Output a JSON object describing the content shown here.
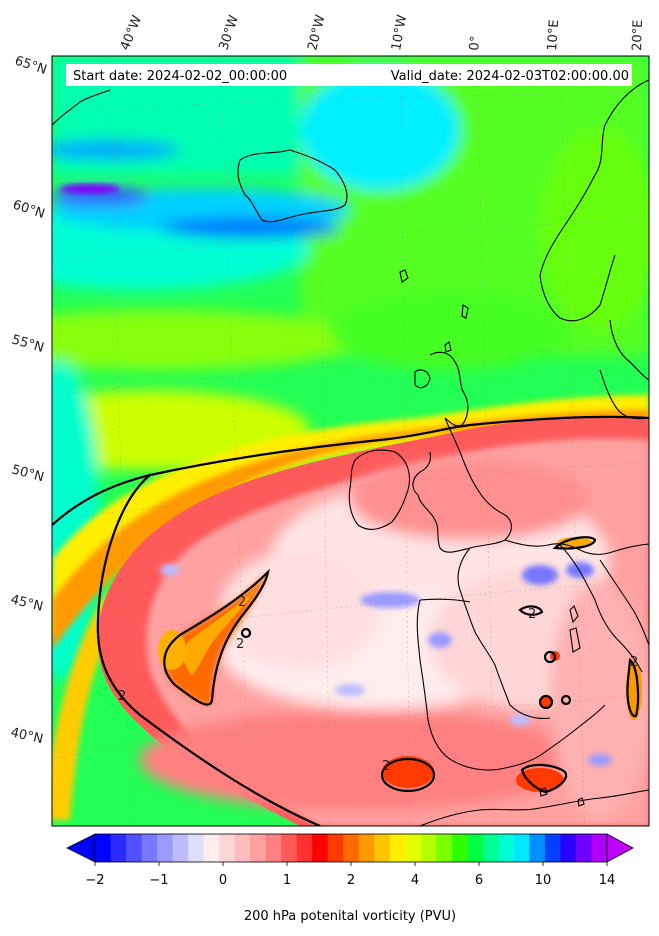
{
  "header": {
    "start_date": "Start date: 2024-02-02_00:00:00",
    "valid_date": "Valid_date: 2024-02-03T02:00:00.00"
  },
  "longitude_labels": [
    "40°W",
    "30°W",
    "20°W",
    "10°W",
    "0°",
    "10°E",
    "20°E"
  ],
  "latitude_labels": [
    "65°N",
    "60°N",
    "55°N",
    "50°N",
    "45°N",
    "40°N"
  ],
  "contour_label": "2",
  "colorbar": {
    "title": "200 hPa potenital vorticity (PVU)",
    "tick_labels": [
      "−2",
      "−1",
      "0",
      "1",
      "2",
      "4",
      "6",
      "10",
      "14"
    ],
    "colors": [
      "#0000ff",
      "#2a2aff",
      "#5050ff",
      "#7777ff",
      "#9a9aff",
      "#bcbcff",
      "#dedeff",
      "#ffecec",
      "#ffd6d6",
      "#ffbcbc",
      "#ffa0a0",
      "#ff8080",
      "#ff5a5a",
      "#ff3030",
      "#ff0000",
      "#ff3a00",
      "#ff6a00",
      "#ff9a00",
      "#ffc400",
      "#ffee00",
      "#e4ff00",
      "#b4ff00",
      "#7aff00",
      "#30ff00",
      "#00ff40",
      "#00ff90",
      "#00ffd0",
      "#00e8ff",
      "#0090ff",
      "#0040ff",
      "#2a00ff",
      "#7000ff",
      "#b000ff"
    ],
    "under_color": "#0000ff",
    "over_color": "#c000ff"
  }
}
